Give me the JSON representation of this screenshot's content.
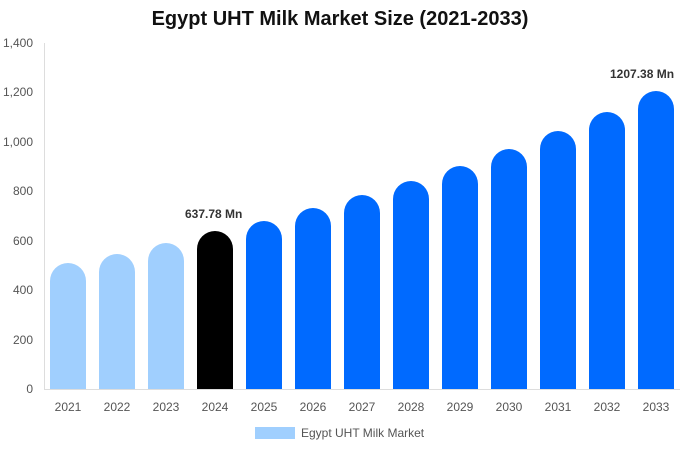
{
  "chart_data": {
    "type": "bar",
    "title": "Egypt UHT Milk Market Size (2021-2033)",
    "xlabel": "",
    "ylabel": "",
    "ylim": [
      0,
      1400
    ],
    "yticks": [
      "0",
      "200",
      "400",
      "600",
      "800",
      "1,000",
      "1,200",
      "1,400"
    ],
    "categories": [
      "2021",
      "2022",
      "2023",
      "2024",
      "2025",
      "2026",
      "2027",
      "2028",
      "2029",
      "2030",
      "2031",
      "2032",
      "2033"
    ],
    "series": [
      {
        "name": "Egypt UHT Milk Market",
        "values": [
          510,
          546,
          591,
          637.78,
          680,
          732,
          785,
          842,
          902,
          971,
          1044,
          1121,
          1207.38
        ]
      }
    ],
    "bar_colors": [
      "#a0cffe",
      "#a0cffe",
      "#a0cffe",
      "#000000",
      "#006aff",
      "#006aff",
      "#006aff",
      "#006aff",
      "#006aff",
      "#006aff",
      "#006aff",
      "#006aff",
      "#006aff"
    ],
    "annotations": [
      {
        "category": "2024",
        "text": "637.78 Mn"
      },
      {
        "category": "2033",
        "text": "1207.38 Mn"
      }
    ],
    "legend": {
      "position": "bottom",
      "entries": [
        "Egypt UHT Milk Market"
      ]
    },
    "grid": false
  }
}
